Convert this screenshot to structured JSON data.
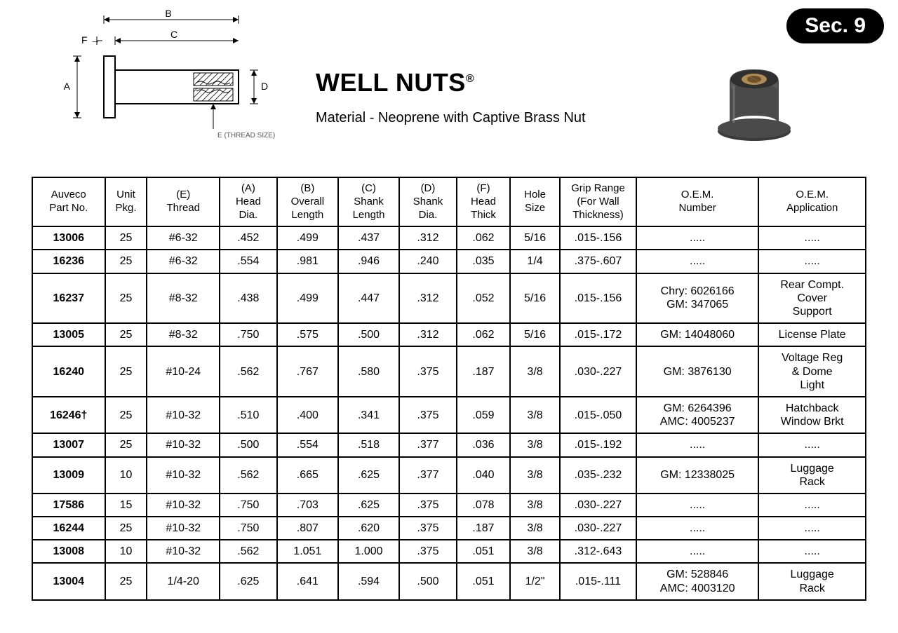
{
  "section_badge": "Sec. 9",
  "title": "WELL NUTS",
  "registered_mark": "®",
  "material_line": "Material - Neoprene with Captive Brass Nut",
  "diagram": {
    "labels": {
      "A": "A",
      "B": "B",
      "C": "C",
      "D": "D",
      "E_note": "E (THREAD SIZE)",
      "F": "F →"
    },
    "line_color": "#000000",
    "hatch_color": "#333333"
  },
  "photo": {
    "body_color": "#4a4a4a",
    "flange_color": "#3a3a3a",
    "nut_color": "#b08d57",
    "highlight": "#8a8a8a"
  },
  "table": {
    "columns": [
      "Auveco\nPart No.",
      "Unit\nPkg.",
      "(E)\nThread",
      "(A)\nHead\nDia.",
      "(B)\nOverall\nLength",
      "(C)\nShank\nLength",
      "(D)\nShank\nDia.",
      "(F)\nHead\nThick",
      "Hole\nSize",
      "Grip Range\n(For Wall\nThickness)",
      "O.E.M.\nNumber",
      "O.E.M.\nApplication"
    ],
    "rows": [
      [
        "13006",
        "25",
        "#6-32",
        ".452",
        ".499",
        ".437",
        ".312",
        ".062",
        "5/16",
        ".015-.156",
        ".....",
        "....."
      ],
      [
        "16236",
        "25",
        "#6-32",
        ".554",
        ".981",
        ".946",
        ".240",
        ".035",
        "1/4",
        ".375-.607",
        ".....",
        "....."
      ],
      [
        "16237",
        "25",
        "#8-32",
        ".438",
        ".499",
        ".447",
        ".312",
        ".052",
        "5/16",
        ".015-.156",
        "Chry: 6026166\nGM: 347065",
        "Rear Compt.\nCover\nSupport"
      ],
      [
        "13005",
        "25",
        "#8-32",
        ".750",
        ".575",
        ".500",
        ".312",
        ".062",
        "5/16",
        ".015-.172",
        "GM: 14048060",
        "License Plate"
      ],
      [
        "16240",
        "25",
        "#10-24",
        ".562",
        ".767",
        ".580",
        ".375",
        ".187",
        "3/8",
        ".030-.227",
        "GM: 3876130",
        "Voltage Reg\n& Dome\nLight"
      ],
      [
        "16246†",
        "25",
        "#10-32",
        ".510",
        ".400",
        ".341",
        ".375",
        ".059",
        "3/8",
        ".015-.050",
        "GM: 6264396\nAMC: 4005237",
        "Hatchback\nWindow Brkt"
      ],
      [
        "13007",
        "25",
        "#10-32",
        ".500",
        ".554",
        ".518",
        ".377",
        ".036",
        "3/8",
        ".015-.192",
        ".....",
        "....."
      ],
      [
        "13009",
        "10",
        "#10-32",
        ".562",
        ".665",
        ".625",
        ".377",
        ".040",
        "3/8",
        ".035-.232",
        "GM: 12338025",
        "Luggage\nRack"
      ],
      [
        "17586",
        "15",
        "#10-32",
        ".750",
        ".703",
        ".625",
        ".375",
        ".078",
        "3/8",
        ".030-.227",
        ".....",
        "....."
      ],
      [
        "16244",
        "25",
        "#10-32",
        ".750",
        ".807",
        ".620",
        ".375",
        ".187",
        "3/8",
        ".030-.227",
        ".....",
        "....."
      ],
      [
        "13008",
        "10",
        "#10-32",
        ".562",
        "1.051",
        "1.000",
        ".375",
        ".051",
        "3/8",
        ".312-.643",
        ".....",
        "....."
      ],
      [
        "13004",
        "25",
        "1/4-20",
        ".625",
        ".641",
        ".594",
        ".500",
        ".051",
        "1/2\"",
        ".015-.111",
        "GM: 528846\nAMC: 4003120",
        "Luggage\nRack"
      ]
    ],
    "header_bg": "#ffffff",
    "border_color": "#000000",
    "part_col_bold": true
  }
}
